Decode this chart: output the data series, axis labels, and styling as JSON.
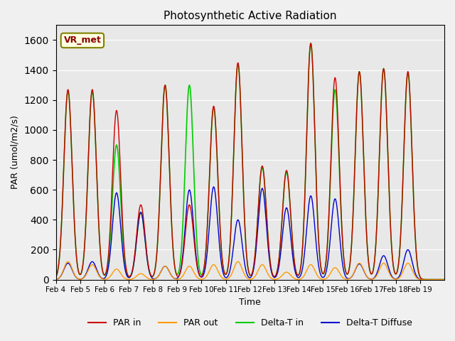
{
  "title": "Photosynthetic Active Radiation",
  "ylabel": "PAR (umol/m2/s)",
  "xlabel": "Time",
  "annotation": "VR_met",
  "plot_bg_color": "#e8e8e8",
  "fig_bg_color": "#f0f0f0",
  "ylim": [
    0,
    1700
  ],
  "legend_labels": [
    "PAR in",
    "PAR out",
    "Delta-T in",
    "Delta-T Diffuse"
  ],
  "legend_colors": [
    "#cc0000",
    "#ff9900",
    "#00cc00",
    "#0000cc"
  ],
  "x_tick_positions": [
    0,
    1,
    2,
    3,
    4,
    5,
    6,
    7,
    8,
    9,
    10,
    11,
    12,
    13,
    14,
    15
  ],
  "x_tick_labels": [
    "Feb 4",
    "Feb 5",
    "Feb 6",
    "Feb 7",
    "Feb 8",
    "Feb 9",
    "Feb 10",
    "Feb 11",
    "Feb 12",
    "Feb 13",
    "Feb 14",
    "Feb 15",
    "Feb 16",
    "Feb 17",
    "Feb 18",
    "Feb 19"
  ],
  "peaks": {
    "par_in": [
      1270,
      1270,
      1130,
      500,
      1300,
      500,
      1160,
      1450,
      760,
      730,
      1580,
      1350,
      1390,
      1410,
      1390,
      0
    ],
    "par_out": [
      120,
      100,
      70,
      40,
      90,
      90,
      100,
      120,
      100,
      50,
      100,
      80,
      110,
      110,
      110,
      0
    ],
    "delta_t": [
      1260,
      1260,
      900,
      450,
      1300,
      1300,
      1150,
      1440,
      750,
      720,
      1580,
      1270,
      1390,
      1410,
      1380,
      0
    ],
    "delta_d": [
      110,
      120,
      580,
      450,
      90,
      600,
      620,
      400,
      610,
      480,
      560,
      540,
      105,
      160,
      200,
      0
    ]
  },
  "sigma": 0.17,
  "n_days": 16,
  "n_points": 768
}
